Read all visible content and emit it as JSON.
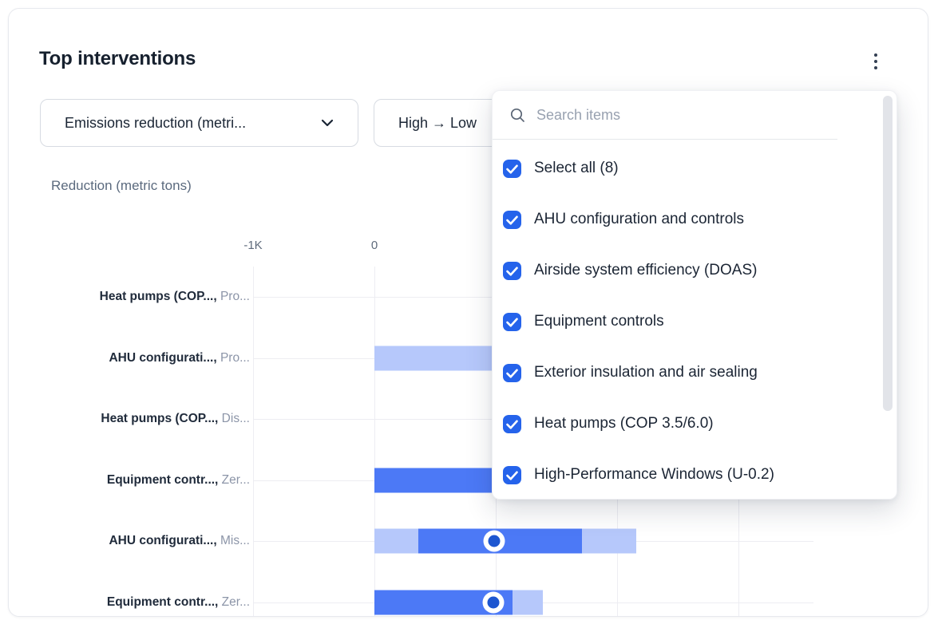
{
  "card": {
    "title": "Top interventions"
  },
  "toolbar": {
    "metric_dropdown_label": "Emissions reduction (metri...",
    "sort_dropdown_label": "High → Low"
  },
  "popup": {
    "search_placeholder": "Search items",
    "all_checked": true,
    "items": [
      "Select all (8)",
      "AHU configuration and controls",
      "Airside system efficiency (DOAS)",
      "Equipment controls",
      "Exterior insulation and air sealing",
      "Heat pumps (COP 3.5/6.0)",
      "High-Performance Windows (U-0.2)"
    ]
  },
  "chart_data": {
    "type": "bar",
    "orientation": "horizontal",
    "axis_title": "Reduction (metric tons)",
    "x_unit_k": 1000,
    "x_domain_k": [
      -1,
      3.6
    ],
    "grid_k": [
      -1,
      0,
      1,
      2,
      3
    ],
    "x_ticks": [
      {
        "label": "-1K",
        "k": -1
      },
      {
        "label": "0",
        "k": 0
      }
    ],
    "rows": [
      {
        "name": "Heat pumps (COP...,",
        "qualifier": "Pro...",
        "segments": [],
        "marker_k": null
      },
      {
        "name": "AHU configurati...,",
        "qualifier": "Pro...",
        "segments": [
          {
            "from_k": 0,
            "to_k": 1.2,
            "tone": "light"
          }
        ],
        "marker_k": null,
        "end_hidden_by_popup": true
      },
      {
        "name": "Heat pumps (COP...,",
        "qualifier": "Dis...",
        "segments": [],
        "marker_k": null
      },
      {
        "name": "Equipment contr...,",
        "qualifier": "Zer...",
        "segments": [
          {
            "from_k": 0,
            "to_k": 1.15,
            "tone": "solid"
          }
        ],
        "marker_k": null,
        "end_hidden_by_popup": true
      },
      {
        "name": "AHU configurati...,",
        "qualifier": "Mis...",
        "segments": [
          {
            "from_k": 0,
            "to_k": 0.36,
            "tone": "light"
          },
          {
            "from_k": 0.36,
            "to_k": 1.71,
            "tone": "solid"
          },
          {
            "from_k": 1.71,
            "to_k": 2.16,
            "tone": "light"
          }
        ],
        "marker_k": 0.99
      },
      {
        "name": "Equipment contr...,",
        "qualifier": "Zer...",
        "segments": [
          {
            "from_k": 0,
            "to_k": 1.14,
            "tone": "solid"
          },
          {
            "from_k": 1.14,
            "to_k": 1.39,
            "tone": "light"
          }
        ],
        "marker_k": 0.98
      }
    ]
  },
  "colors": {
    "accent": "#2563eb",
    "bar_solid": "#4c79f6",
    "bar_light": "#b6c8fb",
    "marker_fill": "#1d56d0",
    "grid": "#ededf2",
    "title_text": "#16202e",
    "label_gray": "#8c95a8",
    "axis_text": "#5f6b7c"
  },
  "icons": {
    "kebab-menu-icon": "⋮",
    "chevron-down-icon": "⌄",
    "search-icon": "⌕",
    "check-icon": "✓",
    "arrow-right-icon": "→"
  }
}
